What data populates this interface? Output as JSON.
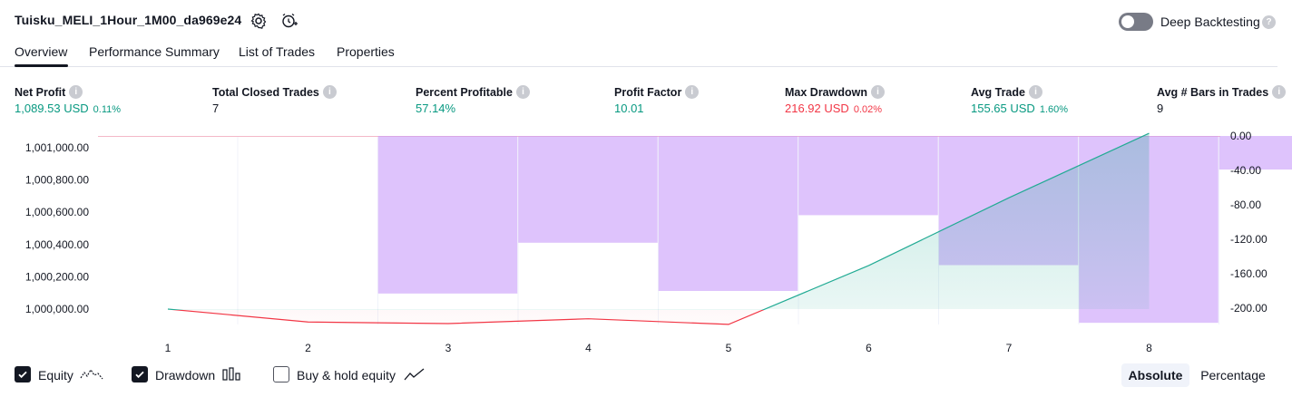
{
  "header": {
    "title": "Tuisku_MELI_1Hour_1M00_da969e24",
    "settings_icon": "gear-icon",
    "alert_icon": "add-alert-icon",
    "deep_backtesting_label": "Deep Backtesting",
    "deep_backtesting_enabled": false
  },
  "tabs": [
    {
      "label": "Overview",
      "active": true
    },
    {
      "label": "Performance Summary",
      "active": false
    },
    {
      "label": "List of Trades",
      "active": false
    },
    {
      "label": "Properties",
      "active": false
    }
  ],
  "metrics": [
    {
      "label": "Net Profit",
      "value": "1,089.53 USD",
      "pct": "0.11%",
      "color": "green"
    },
    {
      "label": "Total Closed Trades",
      "value": "7",
      "pct": "",
      "color": "neutral"
    },
    {
      "label": "Percent Profitable",
      "value": "57.14%",
      "pct": "",
      "color": "green"
    },
    {
      "label": "Profit Factor",
      "value": "10.01",
      "pct": "",
      "color": "green"
    },
    {
      "label": "Max Drawdown",
      "value": "216.92 USD",
      "pct": "0.02%",
      "color": "red"
    },
    {
      "label": "Avg Trade",
      "value": "155.65 USD",
      "pct": "1.60%",
      "color": "green"
    },
    {
      "label": "Avg # Bars in Trades",
      "value": "9",
      "pct": "",
      "color": "neutral"
    }
  ],
  "chart_data": {
    "type": "area",
    "x": [
      1,
      2,
      3,
      4,
      5,
      6,
      7,
      8
    ],
    "left_axis": {
      "ticks": [
        "1,001,000.00",
        "1,000,800.00",
        "1,000,600.00",
        "1,000,400.00",
        "1,000,200.00",
        "1,000,000.00"
      ],
      "ylim": [
        999900,
        1001070
      ]
    },
    "right_axis": {
      "ticks": [
        "0.00",
        "-40.00",
        "-80.00",
        "-120.00",
        "-160.00",
        "-200.00"
      ],
      "ylim": [
        -214,
        0
      ]
    },
    "series": [
      {
        "name": "Equity",
        "axis": "left",
        "values": [
          1000000,
          999920,
          999910,
          999940,
          999905,
          1000270,
          1000690,
          1001089.53
        ]
      },
      {
        "name": "Drawdown",
        "axis": "right",
        "bars": [
          {
            "x0": 1.5,
            "x1": 2.5,
            "value": 0
          },
          {
            "x0": 2.5,
            "x1": 3.5,
            "value": -183
          },
          {
            "x0": 3.5,
            "x1": 4.5,
            "value": -124
          },
          {
            "x0": 4.5,
            "x1": 5.5,
            "value": -180
          },
          {
            "x0": 5.5,
            "x1": 6.5,
            "value": -92
          },
          {
            "x0": 6.5,
            "x1": 7.5,
            "value": -150
          },
          {
            "x0": 7.5,
            "x1": 8.5,
            "value": -217
          },
          {
            "x0": 8.5,
            "x1": 9.5,
            "value": -39
          }
        ]
      }
    ],
    "colors": {
      "equity_pos": "#22ab94",
      "equity_neg": "#f23645",
      "drawdown": "#c89bfa"
    },
    "grid": "vertical only"
  },
  "footer": {
    "checkboxes": [
      {
        "label": "Equity",
        "checked": true,
        "icon": "equity-line-icon"
      },
      {
        "label": "Drawdown",
        "checked": true,
        "icon": "drawdown-bars-icon"
      },
      {
        "label": "Buy & hold equity",
        "checked": false,
        "icon": "buy-hold-line-icon"
      }
    ],
    "absolute_label": "Absolute",
    "percentage_label": "Percentage"
  }
}
